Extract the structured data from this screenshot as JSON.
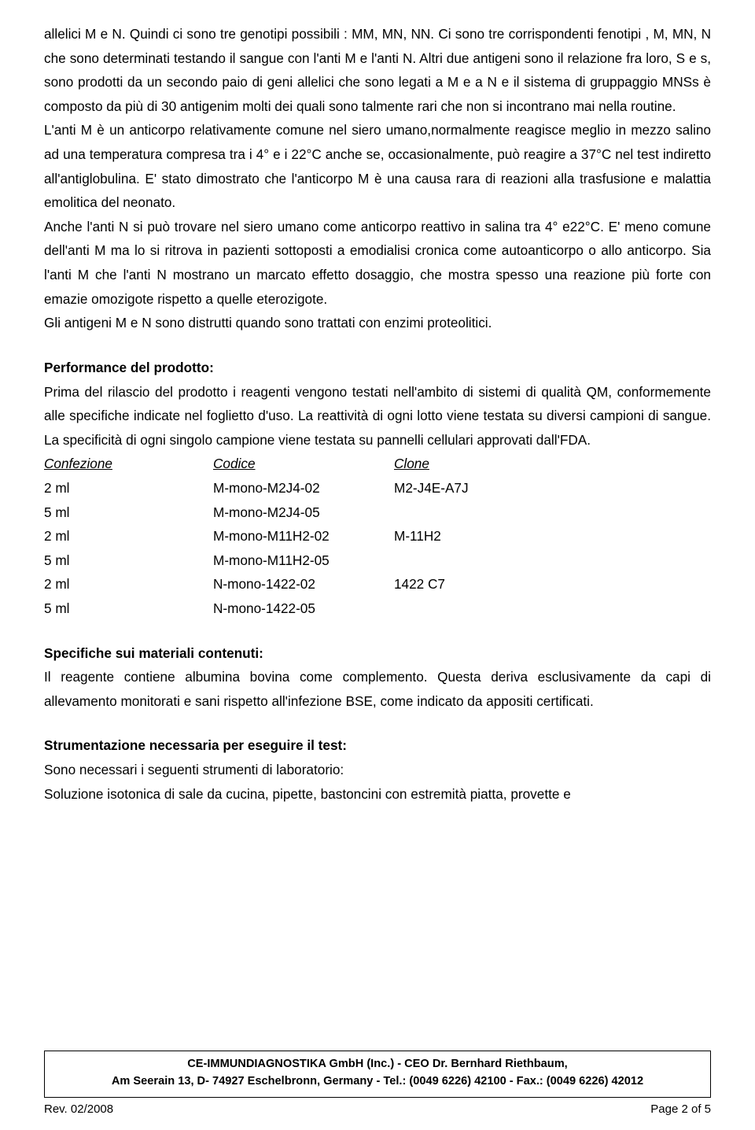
{
  "body": {
    "p1": "allelici M e N. Quindi ci sono tre genotipi possibili : MM, MN, NN. Ci sono tre corrispondenti fenotipi , M, MN, N che sono determinati testando il sangue con l'anti M e l'anti N. Altri due antigeni sono il relazione fra loro, S e s, sono prodotti da un secondo paio di geni allelici che sono legati a M e a N e il sistema di gruppaggio MNSs è composto da più di 30 antigenim molti dei quali  sono talmente rari che non si incontrano mai nella routine.",
    "p2": "L'anti M è un anticorpo relativamente comune nel siero umano,normalmente reagisce meglio in mezzo salino ad una temperatura compresa tra i 4° e i 22°C anche se, occasionalmente, può reagire a 37°C nel test indiretto all'antiglobulina. E' stato dimostrato che l'anticorpo M è una causa rara di reazioni alla trasfusione e malattia emolitica del neonato.",
    "p3": "Anche l'anti N si può trovare nel siero umano come anticorpo reattivo in salina tra 4° e22°C. E' meno comune dell'anti M ma lo si ritrova in pazienti sottoposti a emodialisi cronica come autoanticorpo o allo anticorpo. Sia l'anti M che l'anti N mostrano un marcato effetto dosaggio, che mostra spesso una reazione più forte con emazie omozigote rispetto a quelle eterozigote.",
    "p4": "Gli antigeni M e N sono distrutti quando sono trattati con enzimi proteolitici.",
    "h_perf": "Performance del prodotto:",
    "p5": "Prima del rilascio del prodotto i reagenti vengono testati nell'ambito di sistemi di qualità QM, conformemente alle specifiche indicate nel foglietto d'uso. La reattività di ogni lotto viene testata su diversi campioni di sangue. La specificità di ogni singolo campione viene testata su pannelli cellulari approvati dall'FDA.",
    "table": {
      "headers": {
        "col1": "Confezione",
        "col2": "Codice",
        "col3": "Clone"
      },
      "rows": [
        {
          "c1": "2 ml",
          "c2": "M-mono-M2J4-02",
          "c3": "M2-J4E-A7J"
        },
        {
          "c1": "5 ml",
          "c2": "M-mono-M2J4-05",
          "c3": ""
        },
        {
          "c1": "2 ml",
          "c2": "M-mono-M11H2-02",
          "c3": "M-11H2"
        },
        {
          "c1": "5 ml",
          "c2": "M-mono-M11H2-05",
          "c3": ""
        },
        {
          "c1": "2 ml",
          "c2": "N-mono-1422-02",
          "c3": "1422 C7"
        },
        {
          "c1": "5 ml",
          "c2": "N-mono-1422-05",
          "c3": ""
        }
      ]
    },
    "h_spec": "Specifiche sui materiali contenuti:",
    "p6": "Il reagente contiene albumina bovina come complemento. Questa deriva esclusivamente da capi di allevamento monitorati e sani rispetto all'infezione BSE, come indicato da appositi certificati.",
    "h_strum": "Strumentazione necessaria per eseguire il test:",
    "p7": "Sono necessari i seguenti strumenti di laboratorio:",
    "p8": "Soluzione isotonica di sale da cucina, pipette, bastoncini con estremità piatta, provette e"
  },
  "footer": {
    "line1": "CE-IMMUNDIAGNOSTIKA GmbH (Inc.) - CEO Dr. Bernhard Riethbaum,",
    "line2": "Am Seerain 13, D- 74927 Eschelbronn, Germany - Tel.: (0049 6226) 42100 - Fax.: (0049 6226) 42012",
    "rev": "Rev. 02/2008",
    "page": "Page 2 of 5"
  }
}
